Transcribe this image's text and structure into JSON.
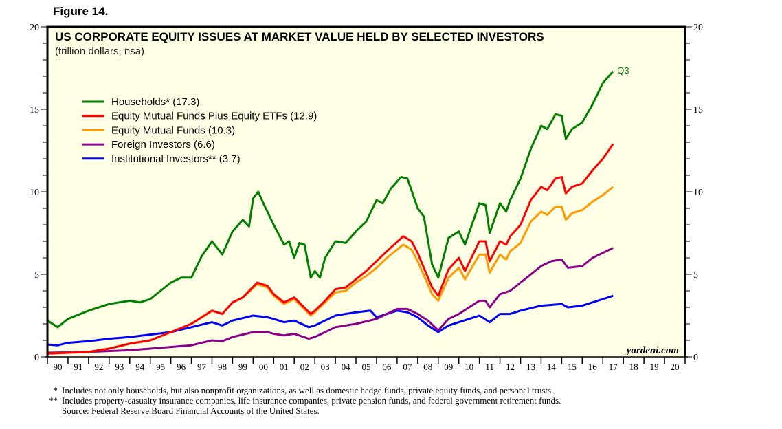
{
  "figure_label": "Figure 14.",
  "source_mark": "yardeni.com",
  "footnotes": [
    {
      "mark": "*",
      "text": "Includes not only households, but also nonprofit organizations, as well as domestic hedge funds, private equity funds, and personal trusts."
    },
    {
      "mark": "**",
      "text": "Includes property-casualty insurance companies, life insurance companies, private pension funds, and federal government retirement funds."
    },
    {
      "mark": "",
      "text": "Source: Federal Reserve Board Financial Accounts of the United States."
    }
  ],
  "chart_data": {
    "type": "line",
    "title": "US CORPORATE EQUITY ISSUES AT MARKET VALUE HELD BY SELECTED INVESTORS",
    "subtitle": "(trillion dollars, nsa)",
    "annotation": "Q3",
    "ylim": [
      0,
      20
    ],
    "yticks": [
      0,
      5,
      10,
      15,
      20
    ],
    "xlim": [
      1990,
      2021
    ],
    "xtick_labels": [
      "90",
      "91",
      "92",
      "93",
      "94",
      "95",
      "96",
      "97",
      "98",
      "99",
      "00",
      "01",
      "02",
      "03",
      "04",
      "05",
      "06",
      "07",
      "08",
      "09",
      "10",
      "11",
      "12",
      "13",
      "14",
      "15",
      "16",
      "17",
      "18",
      "19",
      "20"
    ],
    "legend_placement": "upper-left",
    "series": [
      {
        "name": "Households* (17.3)",
        "color": "#008000",
        "points": [
          [
            1990,
            2.2
          ],
          [
            1990.5,
            1.8
          ],
          [
            1991,
            2.3
          ],
          [
            1992,
            2.8
          ],
          [
            1993,
            3.2
          ],
          [
            1994,
            3.4
          ],
          [
            1994.5,
            3.3
          ],
          [
            1995,
            3.5
          ],
          [
            1996,
            4.5
          ],
          [
            1996.5,
            4.8
          ],
          [
            1997,
            4.8
          ],
          [
            1997.5,
            6.1
          ],
          [
            1998,
            7.0
          ],
          [
            1998.5,
            6.2
          ],
          [
            1999,
            7.6
          ],
          [
            1999.5,
            8.3
          ],
          [
            1999.8,
            7.9
          ],
          [
            2000,
            9.6
          ],
          [
            2000.25,
            10.0
          ],
          [
            2000.5,
            9.3
          ],
          [
            2001,
            8.0
          ],
          [
            2001.5,
            6.8
          ],
          [
            2001.75,
            7.0
          ],
          [
            2002,
            6.0
          ],
          [
            2002.25,
            6.9
          ],
          [
            2002.5,
            6.8
          ],
          [
            2002.8,
            4.8
          ],
          [
            2003,
            5.2
          ],
          [
            2003.25,
            4.8
          ],
          [
            2003.5,
            6.0
          ],
          [
            2004,
            7.0
          ],
          [
            2004.5,
            6.9
          ],
          [
            2005,
            7.6
          ],
          [
            2005.5,
            8.2
          ],
          [
            2006,
            9.5
          ],
          [
            2006.3,
            9.3
          ],
          [
            2006.7,
            10.2
          ],
          [
            2007.2,
            10.9
          ],
          [
            2007.5,
            10.8
          ],
          [
            2008,
            9.0
          ],
          [
            2008.3,
            8.5
          ],
          [
            2008.7,
            5.6
          ],
          [
            2009,
            4.8
          ],
          [
            2009.5,
            7.2
          ],
          [
            2010,
            7.6
          ],
          [
            2010.3,
            6.8
          ],
          [
            2011,
            9.3
          ],
          [
            2011.3,
            9.2
          ],
          [
            2011.5,
            7.5
          ],
          [
            2012,
            9.3
          ],
          [
            2012.3,
            8.8
          ],
          [
            2012.5,
            9.5
          ],
          [
            2013,
            10.8
          ],
          [
            2013.5,
            12.6
          ],
          [
            2014,
            14.0
          ],
          [
            2014.3,
            13.8
          ],
          [
            2014.7,
            14.7
          ],
          [
            2015,
            14.6
          ],
          [
            2015.2,
            13.2
          ],
          [
            2015.5,
            13.8
          ],
          [
            2016,
            14.2
          ],
          [
            2016.5,
            15.3
          ],
          [
            2017,
            16.6
          ],
          [
            2017.5,
            17.3
          ]
        ]
      },
      {
        "name": "Equity Mutual Funds Plus Equity ETFs (12.9)",
        "color": "#ff0000",
        "points": [
          [
            1990,
            0.2
          ],
          [
            1992,
            0.3
          ],
          [
            1993,
            0.5
          ],
          [
            1994,
            0.8
          ],
          [
            1995,
            1.0
          ],
          [
            1996,
            1.5
          ],
          [
            1997,
            2.0
          ],
          [
            1998,
            2.8
          ],
          [
            1998.5,
            2.6
          ],
          [
            1999,
            3.3
          ],
          [
            1999.5,
            3.6
          ],
          [
            2000.2,
            4.5
          ],
          [
            2000.7,
            4.3
          ],
          [
            2001,
            3.8
          ],
          [
            2001.5,
            3.3
          ],
          [
            2002,
            3.6
          ],
          [
            2002.8,
            2.6
          ],
          [
            2003,
            2.8
          ],
          [
            2003.5,
            3.4
          ],
          [
            2004,
            4.1
          ],
          [
            2004.5,
            4.2
          ],
          [
            2005,
            4.7
          ],
          [
            2005.5,
            5.2
          ],
          [
            2006,
            5.8
          ],
          [
            2006.5,
            6.4
          ],
          [
            2007.3,
            7.3
          ],
          [
            2007.7,
            7.0
          ],
          [
            2008,
            6.3
          ],
          [
            2008.7,
            4.2
          ],
          [
            2009,
            3.7
          ],
          [
            2009.5,
            5.3
          ],
          [
            2010,
            6.0
          ],
          [
            2010.3,
            5.2
          ],
          [
            2011,
            7.0
          ],
          [
            2011.3,
            7.0
          ],
          [
            2011.5,
            5.8
          ],
          [
            2012,
            7.0
          ],
          [
            2012.3,
            6.8
          ],
          [
            2012.5,
            7.3
          ],
          [
            2013,
            8.0
          ],
          [
            2013.5,
            9.5
          ],
          [
            2014,
            10.3
          ],
          [
            2014.3,
            10.1
          ],
          [
            2014.7,
            10.8
          ],
          [
            2015,
            10.9
          ],
          [
            2015.2,
            9.9
          ],
          [
            2015.5,
            10.3
          ],
          [
            2016,
            10.5
          ],
          [
            2016.5,
            11.3
          ],
          [
            2017,
            12.0
          ],
          [
            2017.5,
            12.9
          ]
        ]
      },
      {
        "name": "Equity Mutual Funds (10.3)",
        "color": "#ff9900",
        "points": [
          [
            1990,
            0.2
          ],
          [
            1992,
            0.3
          ],
          [
            1993,
            0.5
          ],
          [
            1994,
            0.8
          ],
          [
            1995,
            1.0
          ],
          [
            1996,
            1.5
          ],
          [
            1997,
            2.0
          ],
          [
            1998,
            2.8
          ],
          [
            1998.5,
            2.6
          ],
          [
            1999,
            3.3
          ],
          [
            1999.5,
            3.6
          ],
          [
            2000.2,
            4.4
          ],
          [
            2000.7,
            4.2
          ],
          [
            2001,
            3.7
          ],
          [
            2001.5,
            3.2
          ],
          [
            2002,
            3.5
          ],
          [
            2002.8,
            2.5
          ],
          [
            2003,
            2.7
          ],
          [
            2003.5,
            3.3
          ],
          [
            2004,
            3.9
          ],
          [
            2004.5,
            4.0
          ],
          [
            2005,
            4.5
          ],
          [
            2005.5,
            4.9
          ],
          [
            2006,
            5.4
          ],
          [
            2006.5,
            6.0
          ],
          [
            2007.3,
            6.8
          ],
          [
            2007.7,
            6.5
          ],
          [
            2008,
            5.8
          ],
          [
            2008.7,
            3.8
          ],
          [
            2009,
            3.4
          ],
          [
            2009.5,
            4.8
          ],
          [
            2010,
            5.4
          ],
          [
            2010.3,
            4.7
          ],
          [
            2011,
            6.2
          ],
          [
            2011.3,
            6.2
          ],
          [
            2011.5,
            5.1
          ],
          [
            2012,
            6.2
          ],
          [
            2012.3,
            5.9
          ],
          [
            2012.5,
            6.4
          ],
          [
            2013,
            6.9
          ],
          [
            2013.5,
            8.2
          ],
          [
            2014,
            8.8
          ],
          [
            2014.3,
            8.6
          ],
          [
            2014.7,
            9.1
          ],
          [
            2015,
            9.1
          ],
          [
            2015.2,
            8.3
          ],
          [
            2015.5,
            8.7
          ],
          [
            2016,
            8.9
          ],
          [
            2016.5,
            9.4
          ],
          [
            2017,
            9.8
          ],
          [
            2017.5,
            10.3
          ]
        ]
      },
      {
        "name": "Foreign Investors (6.6)",
        "color": "#8b008b",
        "points": [
          [
            1990,
            0.25
          ],
          [
            1992,
            0.3
          ],
          [
            1994,
            0.4
          ],
          [
            1996,
            0.6
          ],
          [
            1997,
            0.7
          ],
          [
            1998,
            1.0
          ],
          [
            1998.5,
            0.95
          ],
          [
            1999,
            1.2
          ],
          [
            2000,
            1.5
          ],
          [
            2000.7,
            1.5
          ],
          [
            2001,
            1.4
          ],
          [
            2001.5,
            1.3
          ],
          [
            2002,
            1.4
          ],
          [
            2002.7,
            1.1
          ],
          [
            2003,
            1.2
          ],
          [
            2003.5,
            1.5
          ],
          [
            2004,
            1.8
          ],
          [
            2005,
            2.0
          ],
          [
            2006,
            2.3
          ],
          [
            2006.5,
            2.6
          ],
          [
            2007,
            2.9
          ],
          [
            2007.5,
            2.9
          ],
          [
            2008,
            2.6
          ],
          [
            2008.5,
            2.2
          ],
          [
            2009,
            1.6
          ],
          [
            2009.5,
            2.3
          ],
          [
            2010,
            2.6
          ],
          [
            2010.5,
            3.0
          ],
          [
            2011,
            3.4
          ],
          [
            2011.3,
            3.4
          ],
          [
            2011.5,
            3.0
          ],
          [
            2012,
            3.8
          ],
          [
            2012.5,
            4.0
          ],
          [
            2013,
            4.5
          ],
          [
            2014,
            5.5
          ],
          [
            2014.5,
            5.8
          ],
          [
            2015,
            5.9
          ],
          [
            2015.3,
            5.4
          ],
          [
            2016,
            5.5
          ],
          [
            2016.5,
            6.0
          ],
          [
            2017,
            6.3
          ],
          [
            2017.5,
            6.6
          ]
        ]
      },
      {
        "name": "Institutional Investors** (3.7)",
        "color": "#0000ff",
        "points": [
          [
            1990,
            0.75
          ],
          [
            1990.5,
            0.7
          ],
          [
            1991,
            0.85
          ],
          [
            1992,
            0.95
          ],
          [
            1993,
            1.1
          ],
          [
            1994,
            1.2
          ],
          [
            1995,
            1.35
          ],
          [
            1996,
            1.5
          ],
          [
            1997,
            1.8
          ],
          [
            1998,
            2.1
          ],
          [
            1998.5,
            1.9
          ],
          [
            1999,
            2.2
          ],
          [
            2000,
            2.5
          ],
          [
            2000.7,
            2.4
          ],
          [
            2001,
            2.3
          ],
          [
            2001.5,
            2.1
          ],
          [
            2002,
            2.2
          ],
          [
            2002.7,
            1.8
          ],
          [
            2003,
            1.9
          ],
          [
            2003.5,
            2.2
          ],
          [
            2004,
            2.5
          ],
          [
            2005,
            2.7
          ],
          [
            2005.7,
            2.8
          ],
          [
            2006,
            2.4
          ],
          [
            2006.5,
            2.6
          ],
          [
            2007,
            2.8
          ],
          [
            2007.5,
            2.7
          ],
          [
            2008,
            2.4
          ],
          [
            2008.5,
            1.9
          ],
          [
            2009,
            1.5
          ],
          [
            2009.5,
            1.9
          ],
          [
            2010,
            2.1
          ],
          [
            2010.5,
            2.3
          ],
          [
            2011,
            2.5
          ],
          [
            2011.5,
            2.1
          ],
          [
            2012,
            2.6
          ],
          [
            2012.5,
            2.6
          ],
          [
            2013,
            2.8
          ],
          [
            2014,
            3.1
          ],
          [
            2015,
            3.2
          ],
          [
            2015.3,
            3.0
          ],
          [
            2016,
            3.1
          ],
          [
            2016.5,
            3.3
          ],
          [
            2017,
            3.5
          ],
          [
            2017.5,
            3.7
          ]
        ]
      }
    ]
  }
}
